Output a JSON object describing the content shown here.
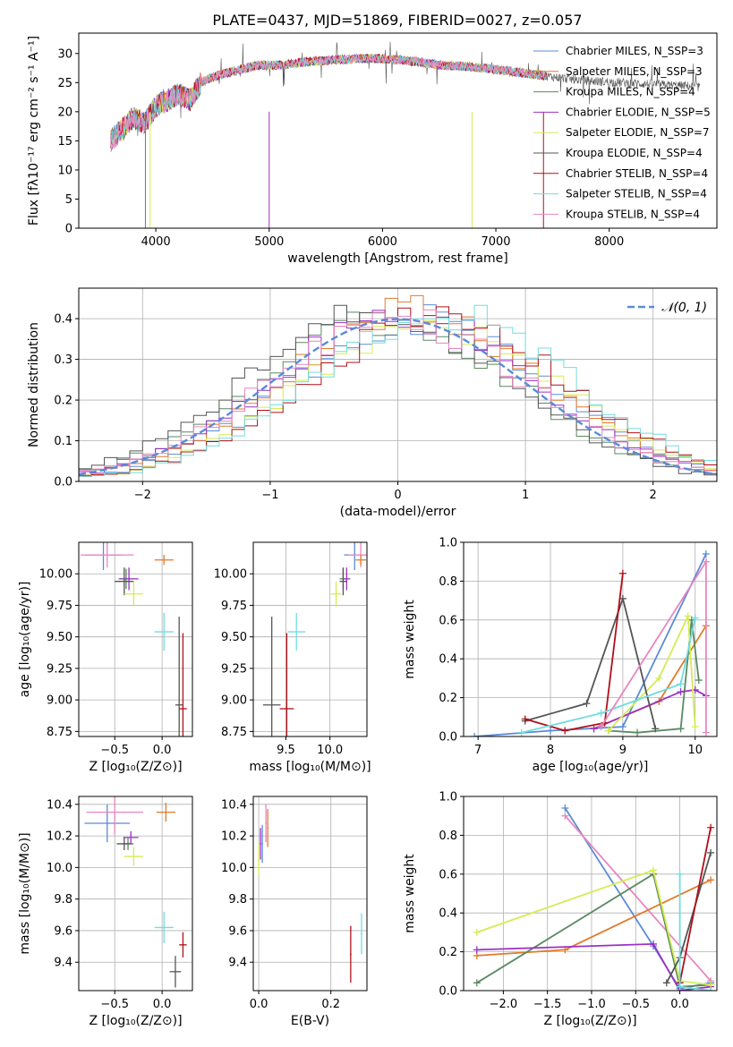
{
  "title": "PLATE=0437, MJD=51869, FIBERID=0027, z=0.057",
  "chart_data": [
    {
      "type": "line",
      "name": "spectrum",
      "xlabel": "wavelength [Angstrom, rest frame]",
      "ylabel": "Flux [fλ10⁻¹⁷ erg cm⁻² s⁻¹ A⁻¹]",
      "xlim": [
        3320,
        8950
      ],
      "ylim": [
        0,
        33.5
      ],
      "xticks": [
        4000,
        5000,
        6000,
        7000,
        8000
      ],
      "yticks": [
        0,
        5,
        10,
        15,
        20,
        25,
        30
      ],
      "grid": false,
      "legend": "top-right",
      "legend_entries": [
        "Chabrier MILES, N_SSP=3",
        "Salpeter MILES, N_SSP=3",
        "Kroupa MILES, N_SSP=4",
        "Chabrier ELODIE, N_SSP=5",
        "Salpeter ELODIE, N_SSP=7",
        "Kroupa ELODIE, N_SSP=4",
        "Chabrier STELIB, N_SSP=4",
        "Salpeter STELIB, N_SSP=4",
        "Kroupa STELIB, N_SSP=4"
      ],
      "anchor_wavelength": [
        3600,
        3700,
        3800,
        3900,
        4000,
        4100,
        4200,
        4300,
        4400,
        4500,
        4700,
        4900,
        5100,
        5300,
        5500,
        5700,
        5900,
        6100,
        6300,
        6500,
        6700,
        6900,
        7100,
        7300,
        7500,
        7700,
        7900,
        8100,
        8300,
        8500,
        8800
      ],
      "anchor_flux": [
        15,
        17,
        19,
        18,
        21,
        22,
        23,
        22,
        25,
        26,
        27,
        28,
        28,
        28.5,
        28.8,
        29,
        29.2,
        29,
        28.6,
        28,
        27.8,
        27.5,
        27,
        26.5,
        26,
        25.5,
        25.2,
        25,
        24.8,
        24.6,
        24.3
      ]
    },
    {
      "type": "step",
      "name": "residuals",
      "xlabel": "(data-model)/error",
      "ylabel": "Normed distribution",
      "xlim": [
        -2.5,
        2.5
      ],
      "ylim": [
        0,
        0.475
      ],
      "xticks": [
        -2,
        -1,
        0,
        1,
        2
      ],
      "yticks": [
        0.0,
        0.1,
        0.2,
        0.3,
        0.4
      ],
      "grid": true,
      "legend": "top-right",
      "legend_entries": [
        "𝒩(0, 1)"
      ],
      "bin_width": 0.1,
      "series": [
        {
          "color": "#5b8bd8",
          "shift": 0.18,
          "scale": 1.0
        },
        {
          "color": "#e27a2a",
          "shift": 0.1,
          "scale": 1.05
        },
        {
          "color": "#5a8a60",
          "shift": -0.08,
          "scale": 0.98
        },
        {
          "color": "#9a32c4",
          "shift": 0.05,
          "scale": 1.02
        },
        {
          "color": "#d4ec54",
          "shift": 0.25,
          "scale": 0.96
        },
        {
          "color": "#555555",
          "shift": -0.15,
          "scale": 1.04
        },
        {
          "color": "#b0101a",
          "shift": 0.3,
          "scale": 1.0
        },
        {
          "color": "#72dce0",
          "shift": 0.35,
          "scale": 1.03
        },
        {
          "color": "#e886c0",
          "shift": 0.0,
          "scale": 1.0
        }
      ]
    },
    {
      "type": "scatter",
      "name": "age_vs_Z",
      "xlabel": "Z [log₁₀(Z/Z⊙)]",
      "ylabel": "age  [log₁₀(age/yr)]",
      "xlim": [
        -0.88,
        0.32
      ],
      "ylim": [
        8.71,
        10.25
      ],
      "xticks": [
        -0.5,
        0.0
      ],
      "yticks": [
        8.75,
        9.0,
        9.25,
        9.5,
        9.75,
        10.0
      ],
      "grid": true,
      "points": [
        {
          "color": "#5b8bd8",
          "x": -0.62,
          "y": 10.15,
          "ex": 0.2,
          "ey": 0.12
        },
        {
          "color": "#e886c0",
          "x": -0.58,
          "y": 10.15,
          "ex": 0.28,
          "ey": 0.1
        },
        {
          "color": "#e27a2a",
          "x": 0.02,
          "y": 10.11,
          "ex": 0.1,
          "ey": 0.04
        },
        {
          "color": "#5a8a60",
          "x": -0.38,
          "y": 9.96,
          "ex": 0.08,
          "ey": 0.08
        },
        {
          "color": "#9a32c4",
          "x": -0.35,
          "y": 9.96,
          "ex": 0.1,
          "ey": 0.09
        },
        {
          "color": "#555555",
          "x": -0.4,
          "y": 9.94,
          "ex": 0.1,
          "ey": 0.11
        },
        {
          "color": "#d4ec54",
          "x": -0.3,
          "y": 9.84,
          "ex": 0.1,
          "ey": 0.1
        },
        {
          "color": "#72dce0",
          "x": 0.02,
          "y": 9.54,
          "ex": 0.1,
          "ey": 0.15
        },
        {
          "color": "#555555",
          "x": 0.18,
          "y": 8.96,
          "ex": 0.04,
          "ey": 0.7
        },
        {
          "color": "#b0101a",
          "x": 0.22,
          "y": 8.93,
          "ex": 0.04,
          "ey": 0.6
        }
      ]
    },
    {
      "type": "scatter",
      "name": "age_vs_mass",
      "xlabel": "mass [log₁₀(M/M⊙)]",
      "ylabel": "",
      "xlim": [
        9.13,
        10.42
      ],
      "ylim": [
        8.71,
        10.25
      ],
      "xticks": [
        9.5,
        10.0
      ],
      "yticks": [
        8.75,
        9.0,
        9.25,
        9.5,
        9.75,
        10.0
      ],
      "grid": true,
      "points": [
        {
          "color": "#5b8bd8",
          "x": 10.28,
          "y": 10.15,
          "ex": 0.12,
          "ey": 0.12
        },
        {
          "color": "#e886c0",
          "x": 10.35,
          "y": 10.15,
          "ex": 0.14,
          "ey": 0.1
        },
        {
          "color": "#e27a2a",
          "x": 10.35,
          "y": 10.11,
          "ex": 0.06,
          "ey": 0.04
        },
        {
          "color": "#5a8a60",
          "x": 10.15,
          "y": 9.96,
          "ex": 0.04,
          "ey": 0.08
        },
        {
          "color": "#9a32c4",
          "x": 10.19,
          "y": 9.96,
          "ex": 0.04,
          "ey": 0.09
        },
        {
          "color": "#555555",
          "x": 10.15,
          "y": 9.94,
          "ex": 0.04,
          "ey": 0.11
        },
        {
          "color": "#d4ec54",
          "x": 10.07,
          "y": 9.84,
          "ex": 0.06,
          "ey": 0.1
        },
        {
          "color": "#72dce0",
          "x": 9.62,
          "y": 9.54,
          "ex": 0.1,
          "ey": 0.15
        },
        {
          "color": "#555555",
          "x": 9.34,
          "y": 8.96,
          "ex": 0.1,
          "ey": 0.7
        },
        {
          "color": "#b0101a",
          "x": 9.51,
          "y": 8.93,
          "ex": 0.08,
          "ey": 0.6
        }
      ]
    },
    {
      "type": "line",
      "name": "mass_weight_vs_age",
      "xlabel": "age  [log₁₀(age/yr)]",
      "ylabel": "mass weight",
      "xlim": [
        6.8,
        10.3
      ],
      "ylim": [
        0,
        1.0
      ],
      "xticks": [
        7,
        8,
        9,
        10
      ],
      "yticks": [
        0.0,
        0.2,
        0.4,
        0.6,
        0.8,
        1.0
      ],
      "grid": true,
      "series": [
        {
          "color": "#5b8bd8",
          "x": [
            6.95,
            8.0,
            9.0,
            10.15
          ],
          "y": [
            0.0,
            0.03,
            0.05,
            0.94
          ]
        },
        {
          "color": "#e27a2a",
          "x": [
            8.6,
            9.5,
            10.15
          ],
          "y": [
            0.04,
            0.18,
            0.57
          ]
        },
        {
          "color": "#5a8a60",
          "x": [
            8.8,
            9.2,
            9.8,
            9.95,
            10.05
          ],
          "y": [
            0.03,
            0.02,
            0.04,
            0.6,
            0.29
          ]
        },
        {
          "color": "#9a32c4",
          "x": [
            8.6,
            9.8,
            10.0,
            10.15
          ],
          "y": [
            0.04,
            0.23,
            0.24,
            0.21
          ]
        },
        {
          "color": "#d4ec54",
          "x": [
            8.8,
            9.5,
            9.9,
            10.0
          ],
          "y": [
            0.03,
            0.3,
            0.62,
            0.05
          ]
        },
        {
          "color": "#555555",
          "x": [
            7.65,
            8.5,
            9.0,
            9.45
          ],
          "y": [
            0.08,
            0.17,
            0.71,
            0.04
          ]
        },
        {
          "color": "#b0101a",
          "x": [
            7.65,
            8.2,
            8.75,
            9.0
          ],
          "y": [
            0.09,
            0.03,
            0.07,
            0.84
          ]
        },
        {
          "color": "#72dce0",
          "x": [
            7.6,
            8.7,
            9.8,
            10.0
          ],
          "y": [
            0.02,
            0.12,
            0.27,
            0.61
          ]
        },
        {
          "color": "#e886c0",
          "x": [
            8.7,
            10.15,
            10.15
          ],
          "y": [
            0.05,
            0.9,
            0.02
          ]
        }
      ]
    },
    {
      "type": "scatter",
      "name": "mass_vs_Z",
      "xlabel": "Z [log₁₀(Z/Z⊙)]",
      "ylabel": "mass [log₁₀(M/M⊙)]",
      "xlim": [
        -0.88,
        0.32
      ],
      "ylim": [
        9.22,
        10.45
      ],
      "xticks": [
        -0.5,
        0.0
      ],
      "yticks": [
        9.4,
        9.6,
        9.8,
        10.0,
        10.2,
        10.4
      ],
      "grid": true,
      "points": [
        {
          "color": "#5b8bd8",
          "x": -0.58,
          "y": 10.28,
          "ex": 0.24,
          "ey": 0.12
        },
        {
          "color": "#e886c0",
          "x": -0.5,
          "y": 10.35,
          "ex": 0.3,
          "ey": 0.14
        },
        {
          "color": "#e27a2a",
          "x": 0.04,
          "y": 10.35,
          "ex": 0.1,
          "ey": 0.06
        },
        {
          "color": "#5a8a60",
          "x": -0.36,
          "y": 10.15,
          "ex": 0.06,
          "ey": 0.04
        },
        {
          "color": "#9a32c4",
          "x": -0.33,
          "y": 10.19,
          "ex": 0.08,
          "ey": 0.04
        },
        {
          "color": "#555555",
          "x": -0.4,
          "y": 10.15,
          "ex": 0.08,
          "ey": 0.04
        },
        {
          "color": "#d4ec54",
          "x": -0.3,
          "y": 10.07,
          "ex": 0.1,
          "ey": 0.06
        },
        {
          "color": "#72dce0",
          "x": 0.02,
          "y": 9.62,
          "ex": 0.1,
          "ey": 0.1
        },
        {
          "color": "#555555",
          "x": 0.14,
          "y": 9.34,
          "ex": 0.06,
          "ey": 0.1
        },
        {
          "color": "#b0101a",
          "x": 0.22,
          "y": 9.51,
          "ex": 0.04,
          "ey": 0.08
        }
      ]
    },
    {
      "type": "scatter",
      "name": "mass_vs_EBV",
      "xlabel": "E(B-V)",
      "ylabel": "",
      "xlim": [
        -0.015,
        0.3
      ],
      "ylim": [
        9.22,
        10.45
      ],
      "xticks": [
        0.0,
        0.2
      ],
      "yticks": [
        9.4,
        9.6,
        9.8,
        10.0,
        10.2,
        10.4
      ],
      "grid": true,
      "points": [
        {
          "color": "#5b8bd8",
          "x": 0.01,
          "y": 10.15,
          "ex": 0.002,
          "ey": 0.12
        },
        {
          "color": "#e886c0",
          "x": 0.02,
          "y": 10.28,
          "ex": 0.002,
          "ey": 0.12
        },
        {
          "color": "#e27a2a",
          "x": 0.025,
          "y": 10.25,
          "ex": 0.002,
          "ey": 0.12
        },
        {
          "color": "#9a32c4",
          "x": 0.005,
          "y": 10.15,
          "ex": 0.002,
          "ey": 0.1
        },
        {
          "color": "#d4ec54",
          "x": 0.0,
          "y": 10.05,
          "ex": 0.002,
          "ey": 0.1
        },
        {
          "color": "#b0101a",
          "x": 0.255,
          "y": 9.45,
          "ex": 0.002,
          "ey": 0.18
        },
        {
          "color": "#72dce0",
          "x": 0.285,
          "y": 9.58,
          "ex": 0.002,
          "ey": 0.13
        }
      ]
    },
    {
      "type": "line",
      "name": "mass_weight_vs_Z",
      "xlabel": "Z [log₁₀(Z/Z⊙)]",
      "ylabel": "mass weight",
      "xlim": [
        -2.45,
        0.42
      ],
      "ylim": [
        0,
        1.0
      ],
      "xticks": [
        -2.0,
        -1.5,
        -1.0,
        -0.5,
        0.0
      ],
      "yticks": [
        0.0,
        0.2,
        0.4,
        0.6,
        0.8,
        1.0
      ],
      "grid": true,
      "series": [
        {
          "color": "#5b8bd8",
          "x": [
            -1.3,
            -0.3,
            0.0,
            0.35
          ],
          "y": [
            0.94,
            0.23,
            0.01,
            0.04
          ]
        },
        {
          "color": "#e886c0",
          "x": [
            -1.3,
            0.35
          ],
          "y": [
            0.9,
            0.05
          ]
        },
        {
          "color": "#e27a2a",
          "x": [
            -2.3,
            -1.3,
            0.35
          ],
          "y": [
            0.18,
            0.21,
            0.57
          ]
        },
        {
          "color": "#5a8a60",
          "x": [
            -2.3,
            -0.3,
            0.0,
            0.35
          ],
          "y": [
            0.04,
            0.6,
            0.02,
            0.03
          ]
        },
        {
          "color": "#9a32c4",
          "x": [
            -2.3,
            -0.3,
            0.0,
            0.35
          ],
          "y": [
            0.21,
            0.24,
            0.0,
            0.02
          ]
        },
        {
          "color": "#d4ec54",
          "x": [
            -2.3,
            -0.3,
            0.0,
            0.35
          ],
          "y": [
            0.3,
            0.62,
            0.05,
            0.03
          ]
        },
        {
          "color": "#555555",
          "x": [
            -0.15,
            0.0,
            0.35
          ],
          "y": [
            0.04,
            0.17,
            0.71
          ]
        },
        {
          "color": "#b0101a",
          "x": [
            0.0,
            0.35
          ],
          "y": [
            0.04,
            0.84
          ]
        },
        {
          "color": "#72dce0",
          "x": [
            0.0,
            0.0,
            0.35
          ],
          "y": [
            0.6,
            0.02,
            0.0
          ]
        }
      ]
    }
  ]
}
